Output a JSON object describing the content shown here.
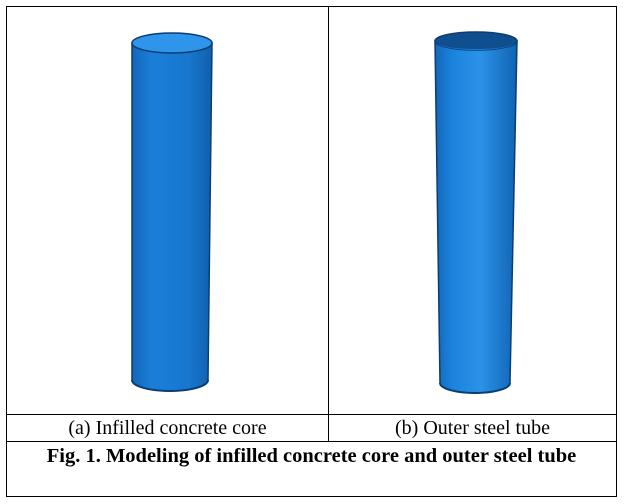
{
  "figure": {
    "panel_a_caption": "(a) Infilled concrete core",
    "panel_b_caption": "(b) Outer steel tube",
    "title": "Fig. 1. Modeling of infilled concrete core and outer steel tube",
    "colors": {
      "cylinder_fill": "#1a7fd9",
      "cylinder_edge": "#0b3d70",
      "top_face_light": "#3ea6f2",
      "inner_dark": "#0f4f8f"
    },
    "panels": [
      {
        "label": "(a)",
        "model": "solid cylinder",
        "icon": "concrete-core-cylinder"
      },
      {
        "label": "(b)",
        "model": "hollow tube",
        "icon": "steel-tube-cylinder"
      }
    ]
  }
}
